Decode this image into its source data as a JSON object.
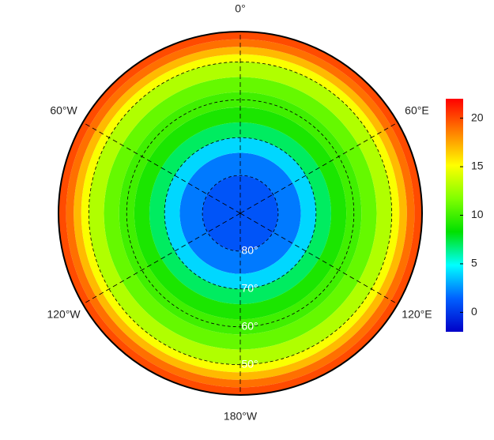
{
  "chart_data": {
    "type": "polar-heatmap",
    "latlim": [
      -90,
      -42
    ],
    "lonticks": [
      {
        "value": 0,
        "label": "0°"
      },
      {
        "value": 60,
        "label": "60°E"
      },
      {
        "value": 120,
        "label": "120°E"
      },
      {
        "value": 180,
        "label": "180°W"
      },
      {
        "value": -120,
        "label": "120°W"
      },
      {
        "value": -60,
        "label": "60°W"
      }
    ],
    "latticks": [
      {
        "value": -80,
        "label": "80°"
      },
      {
        "value": -70,
        "label": "70°"
      },
      {
        "value": -60,
        "label": "60°"
      },
      {
        "value": -50,
        "label": "50°"
      }
    ],
    "lat_edges": [
      -90,
      -80,
      -74,
      -70,
      -66,
      -62,
      -58,
      -54,
      -50,
      -48,
      -46,
      -44,
      -42
    ],
    "values": [
      1,
      2,
      4,
      7,
      9,
      10,
      11,
      13,
      15,
      17,
      19,
      20
    ],
    "clim": [
      -2,
      22
    ],
    "cticks": [
      0,
      5,
      10,
      15,
      20
    ],
    "colormap": [
      "#0000c8",
      "#0060ff",
      "#00ffff",
      "#00e000",
      "#80ff00",
      "#ffff00",
      "#ff8000",
      "#ff0000"
    ]
  }
}
